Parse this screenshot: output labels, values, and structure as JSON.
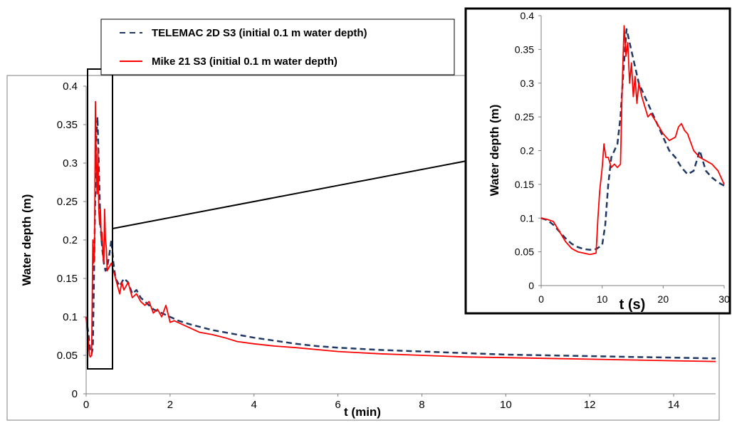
{
  "chart_data": [
    {
      "type": "line",
      "xlabel": "t (min)",
      "ylabel": "Water depth (m)",
      "xlim": [
        0,
        15
      ],
      "ylim": [
        0,
        0.4
      ],
      "x_ticks": [
        "0",
        "2",
        "4",
        "6",
        "8",
        "10",
        "12",
        "14"
      ],
      "y_ticks": [
        "0",
        "0.05",
        "0.1",
        "0.15",
        "0.2",
        "0.25",
        "0.3",
        "0.35",
        "0.4"
      ],
      "grid": false,
      "legend_position": "top-left",
      "series": [
        {
          "name": "TELEMAC 2D  S3 (initial 0.1 m water depth)",
          "color": "#1f3864",
          "style": "dashed",
          "x": [
            0,
            0.05,
            0.1,
            0.13,
            0.16,
            0.2,
            0.24,
            0.27,
            0.3,
            0.34,
            0.38,
            0.42,
            0.46,
            0.5,
            0.55,
            0.6,
            0.65,
            0.7,
            0.8,
            0.9,
            1.0,
            1.1,
            1.2,
            1.3,
            1.4,
            1.5,
            1.6,
            1.8,
            2.0,
            2.2,
            2.5,
            3.0,
            3.5,
            4.0,
            4.5,
            5.0,
            5.5,
            6.0,
            7.0,
            8.0,
            9.0,
            10.0,
            11.0,
            12.0,
            13.0,
            14.0,
            15.0
          ],
          "y": [
            0.1,
            0.08,
            0.055,
            0.052,
            0.06,
            0.2,
            0.33,
            0.36,
            0.3,
            0.22,
            0.19,
            0.17,
            0.16,
            0.165,
            0.18,
            0.2,
            0.17,
            0.15,
            0.14,
            0.15,
            0.145,
            0.13,
            0.135,
            0.125,
            0.12,
            0.115,
            0.11,
            0.105,
            0.1,
            0.095,
            0.09,
            0.083,
            0.078,
            0.073,
            0.069,
            0.065,
            0.062,
            0.06,
            0.057,
            0.055,
            0.053,
            0.051,
            0.05,
            0.049,
            0.048,
            0.047,
            0.046
          ]
        },
        {
          "name": "Mike 21 S3 (initial 0.1 m water depth)",
          "color": "#ff0000",
          "style": "solid",
          "x": [
            0,
            0.05,
            0.08,
            0.1,
            0.13,
            0.16,
            0.18,
            0.2,
            0.22,
            0.24,
            0.26,
            0.28,
            0.3,
            0.32,
            0.34,
            0.36,
            0.38,
            0.4,
            0.42,
            0.44,
            0.46,
            0.48,
            0.5,
            0.55,
            0.6,
            0.65,
            0.7,
            0.75,
            0.8,
            0.85,
            0.9,
            0.95,
            1.0,
            1.1,
            1.2,
            1.3,
            1.4,
            1.5,
            1.6,
            1.7,
            1.8,
            1.9,
            2.0,
            2.1,
            2.3,
            2.5,
            2.7,
            3.0,
            3.3,
            3.6,
            4.0,
            4.5,
            5.0,
            6.0,
            7.0,
            8.0,
            9.0,
            10.0,
            11.0,
            12.0,
            13.0,
            14.0,
            15.0
          ],
          "y": [
            0.1,
            0.07,
            0.05,
            0.048,
            0.05,
            0.2,
            0.17,
            0.19,
            0.38,
            0.3,
            0.26,
            0.32,
            0.24,
            0.22,
            0.24,
            0.2,
            0.21,
            0.18,
            0.17,
            0.24,
            0.2,
            0.19,
            0.16,
            0.165,
            0.17,
            0.16,
            0.15,
            0.14,
            0.13,
            0.145,
            0.135,
            0.14,
            0.145,
            0.125,
            0.13,
            0.12,
            0.115,
            0.12,
            0.105,
            0.11,
            0.1,
            0.115,
            0.093,
            0.095,
            0.09,
            0.085,
            0.08,
            0.077,
            0.073,
            0.068,
            0.065,
            0.062,
            0.06,
            0.055,
            0.052,
            0.05,
            0.048,
            0.047,
            0.046,
            0.045,
            0.044,
            0.043,
            0.042
          ]
        }
      ]
    },
    {
      "type": "line",
      "xlabel": "t (s)",
      "ylabel": "Water depth (m)",
      "xlim": [
        0,
        30
      ],
      "ylim": [
        0,
        0.4
      ],
      "x_ticks": [
        "0",
        "10",
        "20",
        "30"
      ],
      "y_ticks": [
        "0",
        "0.05",
        "0.1",
        "0.15",
        "0.2",
        "0.25",
        "0.3",
        "0.35",
        "0.4"
      ],
      "grid": false,
      "series": [
        {
          "color": "#1f3864",
          "style": "dashed",
          "x": [
            0,
            1,
            2,
            3,
            4,
            5,
            6,
            7,
            8,
            9,
            10,
            10.5,
            11,
            11.5,
            12,
            12.5,
            13,
            13.5,
            14,
            14.5,
            15,
            15.5,
            16,
            16.5,
            17,
            18,
            19,
            20,
            21,
            22,
            23,
            24,
            25,
            26,
            27,
            28,
            29,
            30
          ],
          "y": [
            0.1,
            0.097,
            0.09,
            0.08,
            0.07,
            0.062,
            0.057,
            0.054,
            0.053,
            0.054,
            0.06,
            0.09,
            0.15,
            0.19,
            0.2,
            0.21,
            0.25,
            0.32,
            0.38,
            0.36,
            0.34,
            0.32,
            0.3,
            0.29,
            0.28,
            0.26,
            0.24,
            0.22,
            0.2,
            0.19,
            0.175,
            0.165,
            0.17,
            0.2,
            0.17,
            0.16,
            0.153,
            0.148
          ]
        },
        {
          "color": "#ff0000",
          "style": "solid",
          "x": [
            0,
            1,
            2,
            3,
            4,
            5,
            6,
            7,
            8,
            9,
            9.3,
            9.6,
            10,
            10.3,
            10.6,
            11,
            11.5,
            12,
            12.5,
            13,
            13.3,
            13.6,
            13.9,
            14.2,
            14.5,
            14.8,
            15.1,
            15.4,
            15.7,
            16,
            16.5,
            17,
            17.5,
            18,
            19,
            20,
            21,
            22,
            22.5,
            23,
            23.5,
            24,
            25,
            26,
            27,
            28,
            29,
            30
          ],
          "y": [
            0.1,
            0.098,
            0.095,
            0.08,
            0.065,
            0.055,
            0.05,
            0.048,
            0.046,
            0.048,
            0.1,
            0.14,
            0.175,
            0.21,
            0.19,
            0.19,
            0.175,
            0.18,
            0.175,
            0.18,
            0.3,
            0.385,
            0.34,
            0.36,
            0.3,
            0.33,
            0.28,
            0.31,
            0.27,
            0.3,
            0.28,
            0.265,
            0.25,
            0.255,
            0.24,
            0.225,
            0.215,
            0.22,
            0.235,
            0.24,
            0.23,
            0.225,
            0.2,
            0.19,
            0.185,
            0.18,
            0.17,
            0.15
          ]
        }
      ]
    }
  ]
}
